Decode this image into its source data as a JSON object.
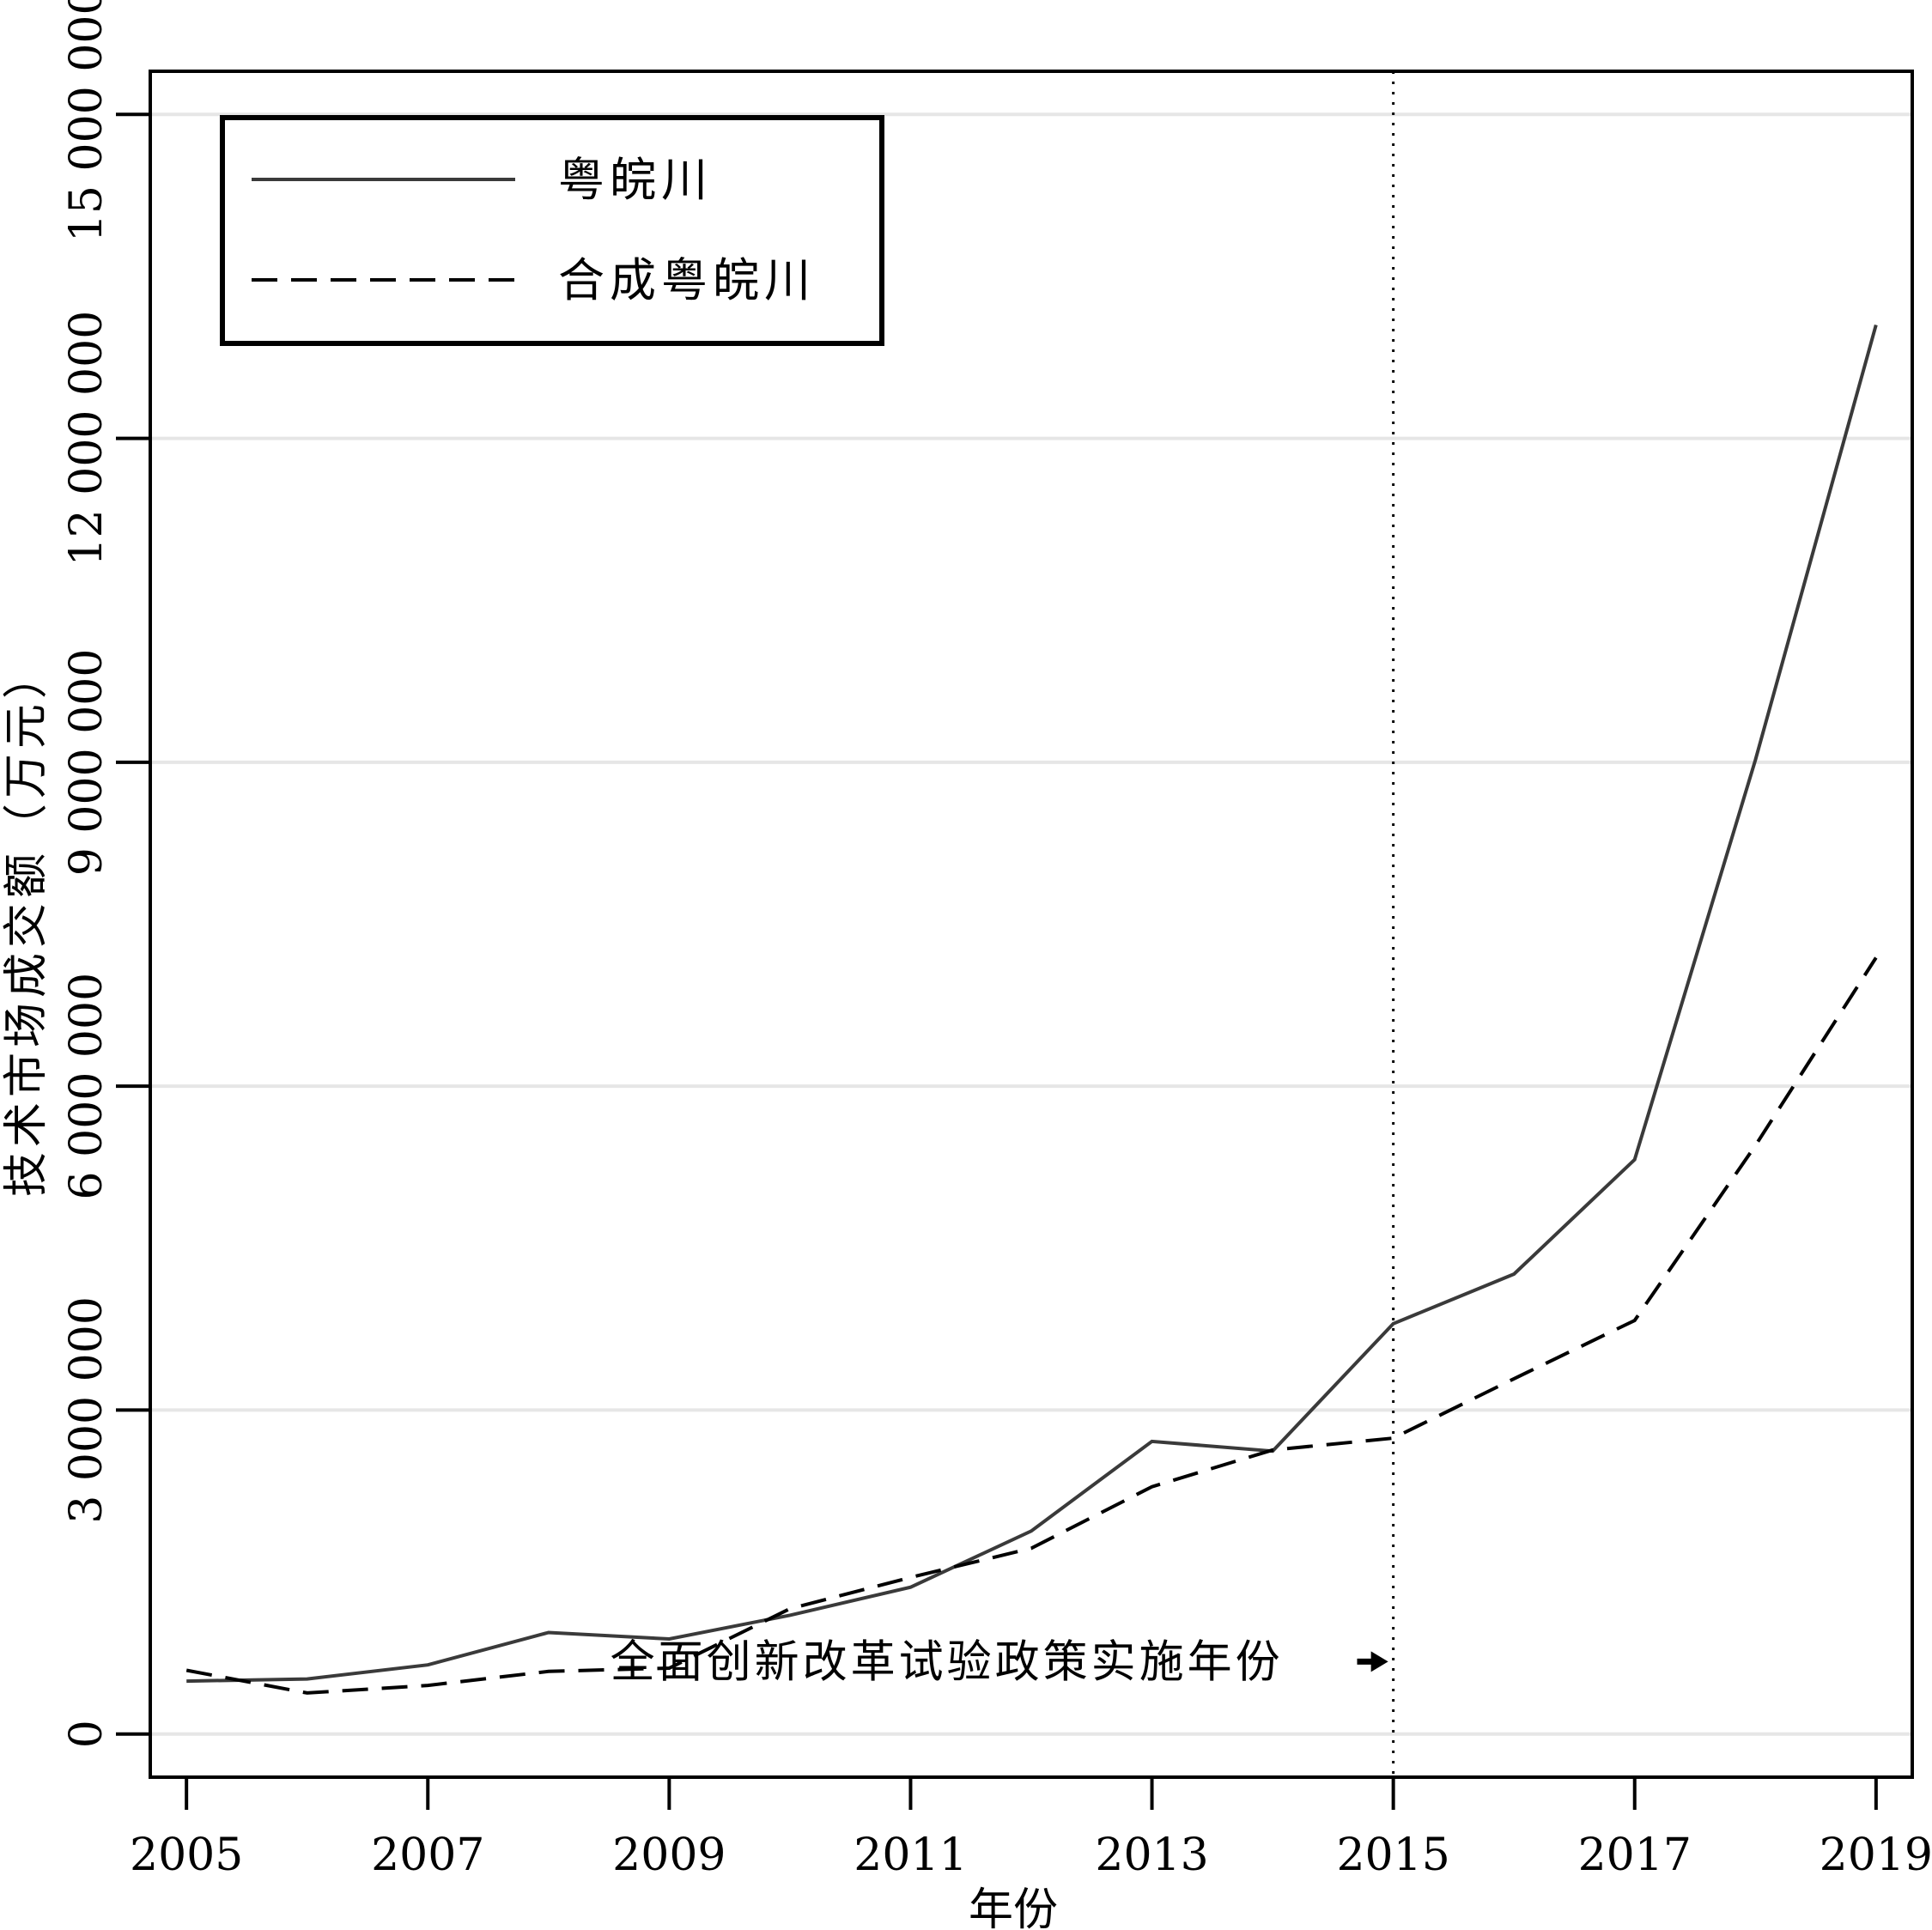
{
  "chart_data": {
    "type": "line",
    "xlabel": "年份",
    "ylabel": "技术市场成交额（万元）",
    "x": [
      2005,
      2006,
      2007,
      2008,
      2009,
      2010,
      2011,
      2012,
      2013,
      2014,
      2015,
      2016,
      2017,
      2018,
      2019
    ],
    "x_ticks": [
      2005,
      2007,
      2009,
      2011,
      2013,
      2015,
      2017,
      2019
    ],
    "x_tick_labels": [
      "2005",
      "2007",
      "2009",
      "2011",
      "2013",
      "2015",
      "2017",
      "2019"
    ],
    "xlim": [
      2004.7,
      2019.3
    ],
    "y_ticks": [
      0,
      3000000,
      6000000,
      9000000,
      12000000,
      15000000
    ],
    "y_tick_labels": [
      "0",
      "3 000 000",
      "6 000 000",
      "9 000 000",
      "12 000 000",
      "15 000 000"
    ],
    "ylim": [
      -400000,
      15400000
    ],
    "grid": "horizontal",
    "legend_position": "top-left",
    "series": [
      {
        "name": "粤皖川",
        "style": "solid",
        "color": "#3a3a3a",
        "values": [
          490000,
          510000,
          640000,
          940000,
          880000,
          1100000,
          1360000,
          1880000,
          2710000,
          2620000,
          3800000,
          4260000,
          5320000,
          9020000,
          13050000
        ]
      },
      {
        "name": "合成粤皖川",
        "style": "dashed",
        "color": "#000000",
        "values": [
          590000,
          380000,
          450000,
          580000,
          610000,
          1160000,
          1450000,
          1720000,
          2290000,
          2630000,
          2740000,
          3290000,
          3830000,
          5450000,
          7190000
        ]
      }
    ],
    "reference_line": {
      "x": 2015,
      "style": "dotted"
    },
    "annotation": {
      "text": "全面创新改革试验政策实施年份",
      "x": 2011.3,
      "y": 670000,
      "arrow_to_x": 2015,
      "arrow_from_x": 2014.7
    }
  }
}
